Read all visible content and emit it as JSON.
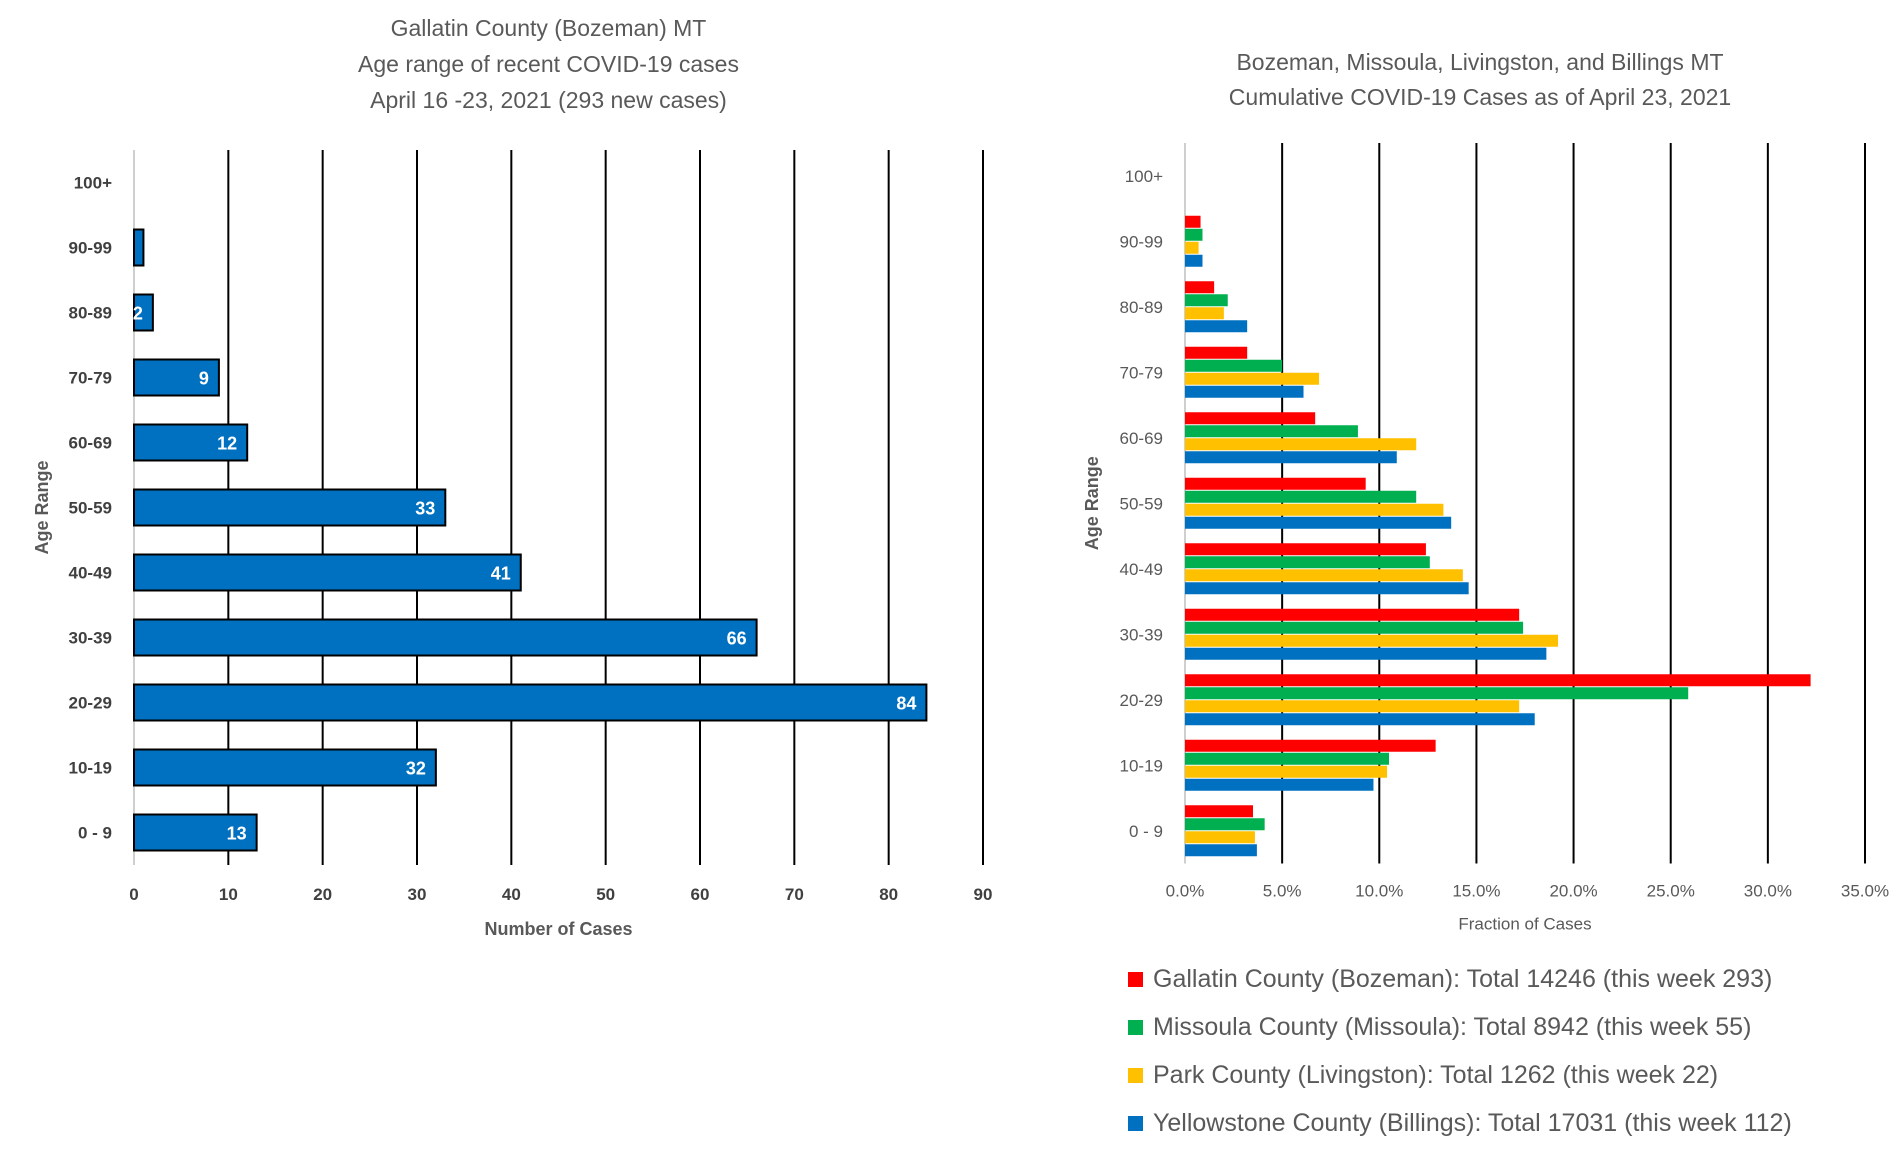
{
  "chart_data": [
    {
      "type": "bar",
      "orientation": "horizontal",
      "title": [
        "Gallatin County (Bozeman) MT",
        "Age range of recent COVID-19 cases",
        "April 16 -23, 2021 (293 new cases)"
      ],
      "xlabel": "Number of Cases",
      "ylabel": "Age Range",
      "categories": [
        "100+",
        "90-99",
        "80-89",
        "70-79",
        "60-69",
        "50-59",
        "40-49",
        "30-39",
        "20-29",
        "10-19",
        "0 - 9"
      ],
      "values": [
        0,
        1,
        2,
        9,
        12,
        33,
        41,
        66,
        84,
        32,
        13
      ],
      "data_labels": [
        "",
        "",
        "2",
        "9",
        "12",
        "33",
        "41",
        "66",
        "84",
        "32",
        "13"
      ],
      "xlim": [
        0,
        90
      ],
      "xticks": [
        "0",
        "10",
        "20",
        "30",
        "40",
        "50",
        "60",
        "70",
        "80",
        "90"
      ],
      "grid": true,
      "color": "#0070C0"
    },
    {
      "type": "bar",
      "orientation": "horizontal",
      "title": [
        "Bozeman, Missoula, Livingston, and Billings MT",
        "Cumulative COVID-19 Cases as of April 23, 2021"
      ],
      "xlabel": "Fraction of Cases",
      "ylabel": "Age Range",
      "categories": [
        "100+",
        "90-99",
        "80-89",
        "70-79",
        "60-69",
        "50-59",
        "40-49",
        "30-39",
        "20-29",
        "10-19",
        "0 - 9"
      ],
      "xlim": [
        0,
        0.35
      ],
      "xticks": [
        "0.0%",
        "5.0%",
        "10.0%",
        "15.0%",
        "20.0%",
        "25.0%",
        "30.0%",
        "35.0%"
      ],
      "grid": true,
      "legend_position": "bottom",
      "series": [
        {
          "name": "Gallatin County (Bozeman): Total 14246 (this week 293)",
          "color": "#FF0000",
          "values": [
            0,
            0.008,
            0.015,
            0.032,
            0.067,
            0.093,
            0.124,
            0.172,
            0.322,
            0.129,
            0.035
          ]
        },
        {
          "name": "Missoula County (Missoula): Total 8942 (this week 55)",
          "color": "#00B050",
          "values": [
            0,
            0.009,
            0.022,
            0.05,
            0.089,
            0.119,
            0.126,
            0.174,
            0.259,
            0.105,
            0.041
          ]
        },
        {
          "name": "Park County (Livingston): Total 1262 (this week 22)",
          "color": "#FFC000",
          "values": [
            0,
            0.007,
            0.02,
            0.069,
            0.119,
            0.133,
            0.143,
            0.192,
            0.172,
            0.104,
            0.036
          ]
        },
        {
          "name": "Yellowstone County (Billings): Total 17031 (this week 112)",
          "color": "#0070C0",
          "values": [
            0,
            0.009,
            0.032,
            0.061,
            0.109,
            0.137,
            0.146,
            0.186,
            0.18,
            0.097,
            0.037
          ]
        }
      ]
    }
  ]
}
